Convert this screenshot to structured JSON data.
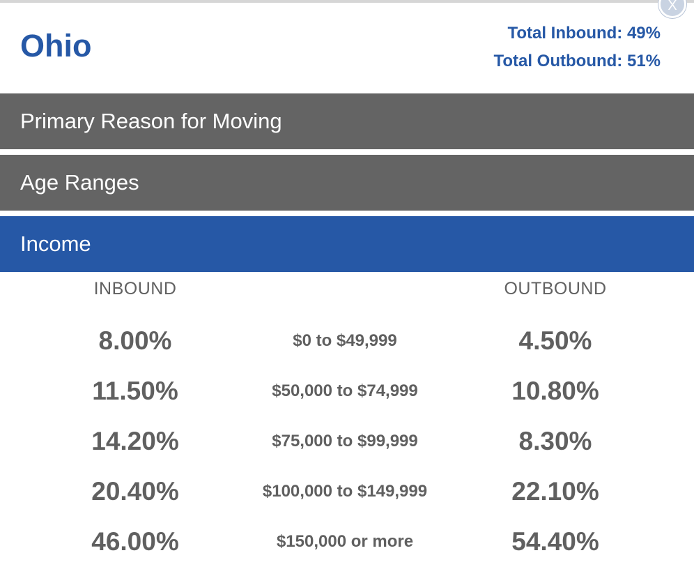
{
  "header": {
    "state": "Ohio",
    "total_inbound": "Total Inbound: 49%",
    "total_outbound": "Total Outbound: 51%",
    "close_label": "X"
  },
  "sections": [
    {
      "label": "Primary Reason for Moving",
      "active": false
    },
    {
      "label": "Age Ranges",
      "active": false
    },
    {
      "label": "Income",
      "active": true
    }
  ],
  "income": {
    "inbound_header": "INBOUND",
    "outbound_header": "OUTBOUND",
    "rows": [
      {
        "inbound": "8.00%",
        "range": "$0 to $49,999",
        "outbound": "4.50%"
      },
      {
        "inbound": "11.50%",
        "range": "$50,000 to $74,999",
        "outbound": "10.80%"
      },
      {
        "inbound": "14.20%",
        "range": "$75,000 to $99,999",
        "outbound": "8.30%"
      },
      {
        "inbound": "20.40%",
        "range": "$100,000 to $149,999",
        "outbound": "22.10%"
      },
      {
        "inbound": "46.00%",
        "range": "$150,000 or more",
        "outbound": "54.40%"
      }
    ]
  },
  "colors": {
    "accent_blue": "#2658a6",
    "section_gray": "#646464",
    "text_gray": "#606060"
  }
}
